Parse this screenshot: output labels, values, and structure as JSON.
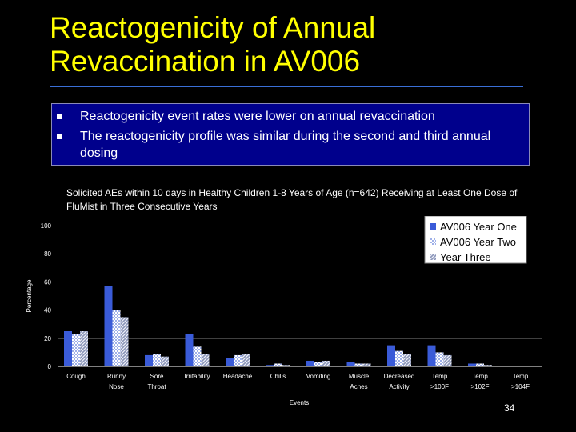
{
  "slide": {
    "title_line1": "Reactogenicity of Annual",
    "title_line2": "Revaccination in AV006",
    "bullets": [
      "Reactogenicity event rates were lower on annual revaccination",
      "The reactogenicity profile was similar during the second and third annual dosing"
    ],
    "chart_caption": "Solicited AEs within 10 days in Healthy Children 1-8 Years of Age (n=642) Receiving at Least One Dose of FluMist in Three Consecutive Years",
    "page_number": "34"
  },
  "colors": {
    "title": "#ffff00",
    "bullet_box": "#00008c",
    "series1": "#3a5bd8",
    "series2_base": "#9fb0e8",
    "series3_base": "#8a95b8",
    "grid": "#ffffff"
  },
  "chart_data": {
    "type": "bar",
    "categories": [
      [
        "Cough"
      ],
      [
        "Runny",
        "Nose"
      ],
      [
        "Sore",
        "Throat"
      ],
      [
        "Irritability"
      ],
      [
        "Headache"
      ],
      [
        "Chills"
      ],
      [
        "Vomiting"
      ],
      [
        "Muscle",
        "Aches"
      ],
      [
        "Decreased",
        "Activity"
      ],
      [
        "Temp",
        ">100F"
      ],
      [
        "Temp",
        ">102F"
      ],
      [
        "Temp",
        ">104F"
      ]
    ],
    "series": [
      {
        "name": "AV006 Year One",
        "pattern": "solid",
        "values": [
          25,
          57,
          8,
          23,
          6,
          1,
          4,
          3,
          15,
          15,
          2,
          0
        ]
      },
      {
        "name": "AV006 Year Two",
        "pattern": "checker",
        "values": [
          23,
          40,
          9,
          14,
          8,
          2,
          3,
          2,
          11,
          10,
          2,
          0
        ]
      },
      {
        "name": "Year Three",
        "pattern": "diagonal",
        "values": [
          25,
          35,
          7,
          9,
          9,
          1,
          4,
          2,
          9,
          8,
          1,
          0
        ]
      }
    ],
    "xlabel": "Events",
    "ylabel": "Percentage",
    "ylim": [
      0,
      100
    ],
    "yticks": [
      0,
      20,
      40,
      60,
      80,
      100
    ],
    "grid": "horizontal at 20",
    "legend_position": "top-right"
  }
}
